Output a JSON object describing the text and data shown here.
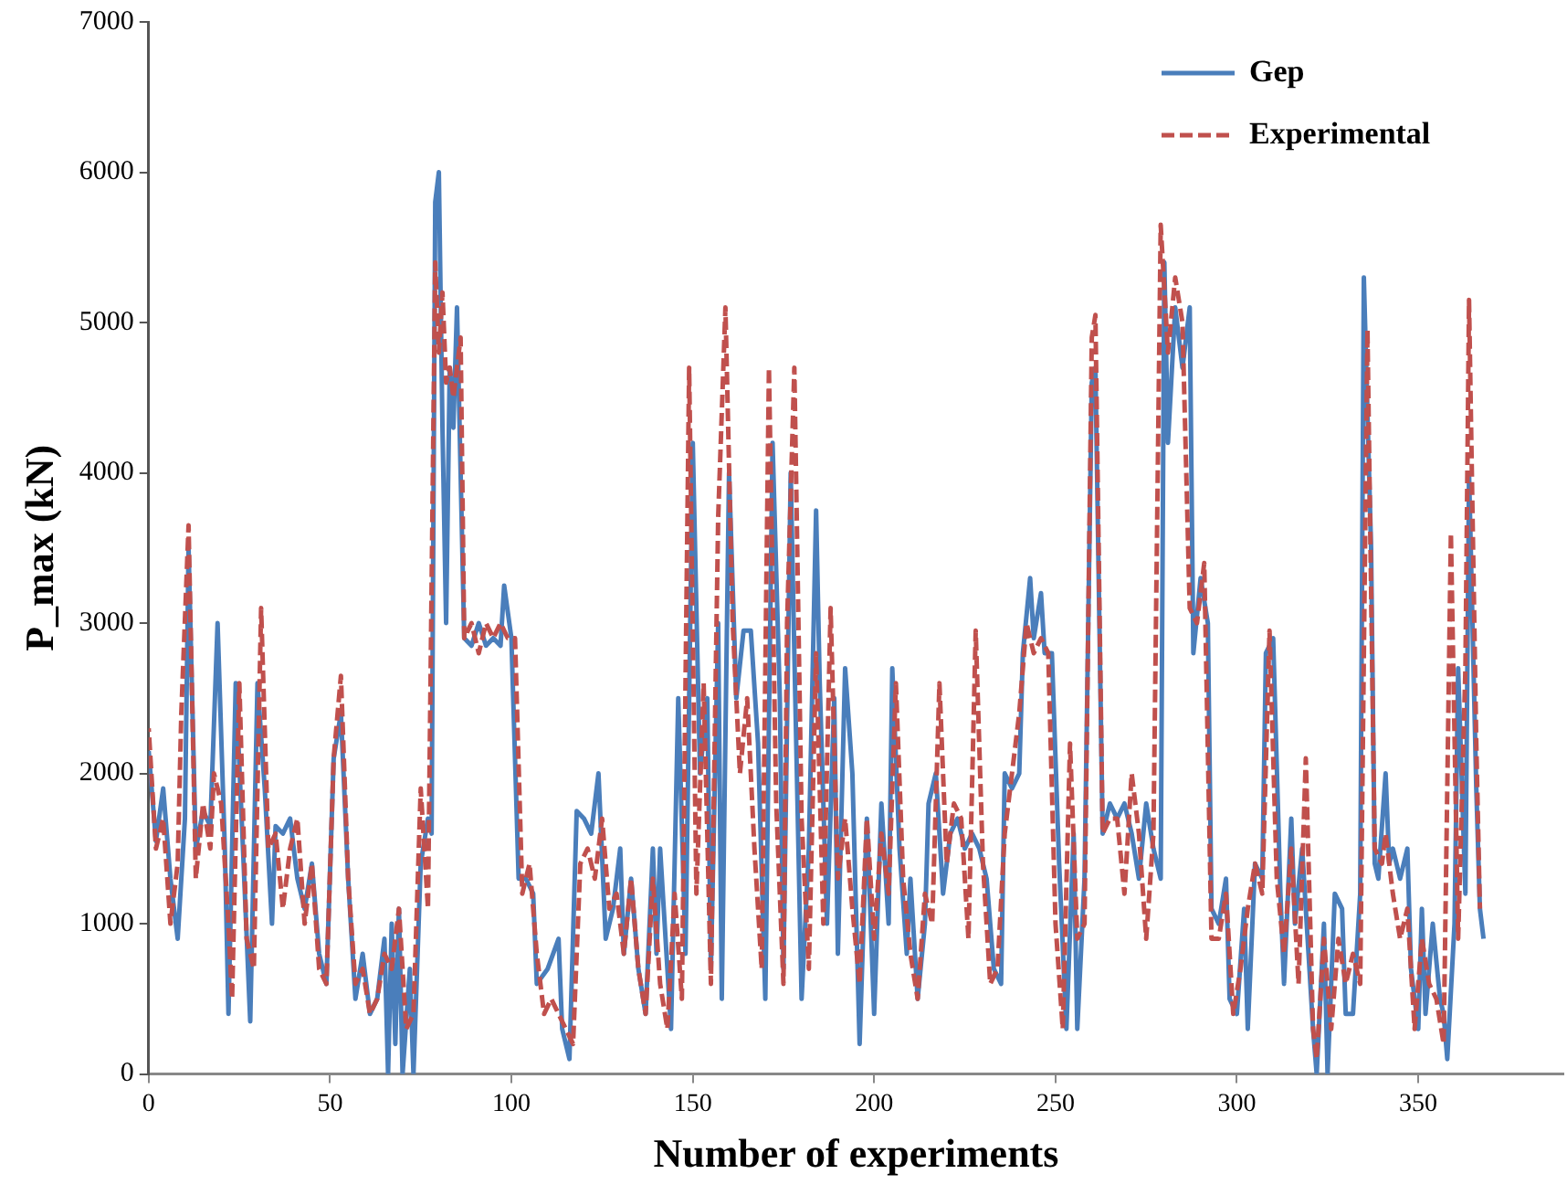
{
  "chart_data": {
    "type": "line",
    "xlabel": "Number of experiments",
    "ylabel": "P_max (kN)",
    "xlim": [
      0,
      390
    ],
    "xticks": [
      0,
      50,
      100,
      150,
      200,
      250,
      300,
      350
    ],
    "ylim": [
      0,
      7000
    ],
    "yticks": [
      0,
      1000,
      2000,
      3000,
      4000,
      5000,
      6000,
      7000
    ],
    "grid": false,
    "legend": "top right",
    "series": [
      {
        "name": "Gep",
        "color": "#4a7ebb",
        "line_style": "solid",
        "x": [
          0,
          2,
          4,
          6,
          8,
          10,
          11,
          13,
          15,
          17,
          19,
          21,
          22,
          24,
          26,
          28,
          30,
          32,
          34,
          35,
          37,
          39,
          41,
          43,
          45,
          47,
          49,
          51,
          53,
          55,
          57,
          59,
          61,
          63,
          65,
          66,
          67,
          68,
          69,
          70,
          72,
          73,
          75,
          77,
          78,
          79,
          80,
          81,
          82,
          83,
          84,
          85,
          87,
          89,
          91,
          93,
          95,
          97,
          98,
          100,
          102,
          104,
          106,
          107,
          110,
          113,
          114,
          116,
          118,
          120,
          122,
          124,
          126,
          128,
          130,
          131,
          133,
          135,
          137,
          139,
          140,
          141,
          143,
          144,
          146,
          148,
          150,
          152,
          154,
          155,
          157,
          158,
          160,
          162,
          164,
          166,
          168,
          170,
          172,
          174,
          175,
          177,
          178,
          180,
          182,
          184,
          185,
          187,
          189,
          190,
          192,
          194,
          196,
          198,
          200,
          202,
          204,
          205,
          207,
          209,
          210,
          212,
          214,
          215,
          217,
          219,
          221,
          223,
          225,
          227,
          229,
          231,
          233,
          235,
          236,
          238,
          240,
          241,
          243,
          244,
          246,
          247,
          249,
          251,
          253,
          255,
          256,
          258,
          260,
          261,
          263,
          265,
          267,
          269,
          271,
          273,
          275,
          277,
          279,
          280,
          281,
          283,
          285,
          287,
          288,
          290,
          292,
          293,
          295,
          297,
          298,
          300,
          302,
          303,
          305,
          307,
          308,
          310,
          312,
          313,
          315,
          316,
          318,
          320,
          321,
          322,
          324,
          325,
          327,
          329,
          330,
          332,
          334,
          335,
          337,
          338,
          339,
          341,
          342,
          343,
          345,
          347,
          348,
          350,
          351,
          352,
          354,
          356,
          357,
          358,
          360,
          361,
          363,
          364,
          366,
          367,
          368
        ],
        "values": [
          2150,
          1550,
          1900,
          1300,
          900,
          1700,
          3500,
          1500,
          1750,
          1650,
          3000,
          1500,
          400,
          2600,
          1500,
          350,
          2600,
          1900,
          1000,
          1650,
          1600,
          1700,
          1300,
          1100,
          1400,
          800,
          600,
          2100,
          2400,
          1300,
          500,
          800,
          400,
          500,
          900,
          0,
          1000,
          200,
          1100,
          0,
          700,
          0,
          1400,
          1700,
          1600,
          5800,
          6000,
          4300,
          3000,
          4700,
          4300,
          5100,
          2900,
          2850,
          3000,
          2850,
          2900,
          2850,
          3250,
          2900,
          1300,
          1300,
          1200,
          600,
          700,
          900,
          300,
          100,
          1750,
          1700,
          1600,
          2000,
          900,
          1100,
          1500,
          800,
          1300,
          700,
          400,
          1500,
          800,
          1500,
          700,
          300,
          2500,
          800,
          4200,
          2000,
          2500,
          700,
          3000,
          500,
          4000,
          2500,
          2950,
          2950,
          2200,
          500,
          4200,
          2500,
          700,
          4000,
          2800,
          500,
          1500,
          3750,
          2600,
          1000,
          2500,
          800,
          2700,
          2000,
          200,
          1700,
          400,
          1800,
          1000,
          2700,
          1500,
          800,
          1300,
          500,
          1000,
          1800,
          2000,
          1200,
          1600,
          1700,
          1500,
          1600,
          1500,
          1300,
          700,
          600,
          2000,
          1900,
          2000,
          2800,
          3300,
          2900,
          3200,
          2800,
          2800,
          1400,
          300,
          1600,
          300,
          1300,
          4600,
          4700,
          1600,
          1800,
          1700,
          1800,
          1600,
          1300,
          1800,
          1500,
          1300,
          5400,
          4200,
          5100,
          4700,
          5100,
          2800,
          3300,
          3000,
          1100,
          1000,
          1300,
          500,
          400,
          1100,
          300,
          1400,
          1300,
          2800,
          2900,
          1200,
          600,
          1700,
          1000,
          1500,
          700,
          300,
          0,
          1000,
          0,
          1200,
          1100,
          400,
          400,
          1200,
          5300,
          3500,
          1400,
          1300,
          2000,
          1400,
          1500,
          1300,
          1500,
          700,
          300,
          1100,
          400,
          1000,
          500,
          400,
          100,
          1000,
          2700,
          1200,
          4000,
          1900,
          1100,
          900
        ]
      },
      {
        "name": "Experimental",
        "color": "#c0504d",
        "line_style": "dashed",
        "x": [
          0,
          2,
          4,
          6,
          8,
          9,
          11,
          13,
          15,
          17,
          18,
          20,
          22,
          23,
          25,
          27,
          29,
          31,
          33,
          35,
          37,
          39,
          41,
          43,
          45,
          47,
          49,
          51,
          53,
          55,
          57,
          59,
          61,
          63,
          65,
          67,
          69,
          71,
          73,
          75,
          77,
          79,
          80,
          81,
          82,
          83,
          84,
          86,
          87,
          89,
          91,
          93,
          95,
          97,
          99,
          101,
          103,
          105,
          107,
          109,
          111,
          113,
          115,
          117,
          119,
          121,
          123,
          125,
          127,
          129,
          131,
          133,
          135,
          137,
          139,
          141,
          143,
          145,
          147,
          149,
          151,
          153,
          155,
          157,
          159,
          161,
          163,
          165,
          167,
          169,
          171,
          173,
          175,
          176,
          178,
          180,
          182,
          184,
          186,
          188,
          190,
          192,
          194,
          196,
          198,
          200,
          202,
          204,
          206,
          208,
          210,
          212,
          214,
          216,
          218,
          220,
          222,
          224,
          226,
          228,
          230,
          232,
          234,
          236,
          238,
          240,
          242,
          244,
          246,
          248,
          250,
          252,
          254,
          256,
          258,
          260,
          261,
          263,
          265,
          267,
          269,
          271,
          273,
          275,
          277,
          279,
          281,
          283,
          285,
          287,
          289,
          291,
          293,
          295,
          297,
          299,
          301,
          303,
          305,
          307,
          309,
          311,
          313,
          315,
          317,
          319,
          321,
          322,
          324,
          326,
          328,
          330,
          332,
          334,
          336,
          338,
          340,
          341,
          343,
          345,
          347,
          349,
          351,
          353,
          355,
          357,
          359,
          361,
          363,
          364,
          366,
          367
        ],
        "values": [
          2300,
          1500,
          1700,
          1000,
          1400,
          2400,
          3650,
          1300,
          1800,
          1500,
          2000,
          1800,
          1000,
          500,
          2600,
          900,
          700,
          3100,
          1500,
          1600,
          1100,
          1500,
          1700,
          1000,
          1400,
          700,
          600,
          2100,
          2650,
          1300,
          600,
          700,
          400,
          500,
          800,
          700,
          1100,
          300,
          400,
          1900,
          1100,
          5400,
          4800,
          5200,
          4600,
          4700,
          4500,
          4900,
          2900,
          3000,
          2800,
          3000,
          2900,
          3000,
          2900,
          2900,
          1200,
          1400,
          800,
          400,
          500,
          400,
          300,
          200,
          1400,
          1500,
          1300,
          1700,
          1100,
          1200,
          800,
          1300,
          700,
          400,
          1300,
          600,
          300,
          1200,
          500,
          4700,
          1200,
          2600,
          600,
          3700,
          5100,
          3000,
          2000,
          2500,
          1500,
          700,
          4700,
          1800,
          600,
          3000,
          4700,
          1700,
          700,
          2800,
          1000,
          3100,
          1300,
          1700,
          1100,
          600,
          1700,
          900,
          1600,
          1200,
          2600,
          1300,
          800,
          500,
          1200,
          1000,
          2600,
          1400,
          1800,
          1700,
          900,
          2950,
          1400,
          600,
          700,
          1600,
          2000,
          2400,
          3000,
          2800,
          2900,
          2800,
          1000,
          300,
          2200,
          900,
          1000,
          4900,
          5050,
          1600,
          1700,
          1700,
          1200,
          2000,
          1600,
          900,
          1600,
          5650,
          4800,
          5300,
          5000,
          3100,
          3000,
          3400,
          900,
          900,
          1200,
          400,
          700,
          1100,
          1400,
          1200,
          2950,
          1300,
          800,
          1500,
          600,
          2100,
          300,
          100,
          900,
          300,
          900,
          600,
          800,
          600,
          4950,
          1500,
          1400,
          1600,
          1200,
          900,
          1100,
          300,
          900,
          600,
          500,
          200,
          3600,
          900,
          2700,
          5150,
          2200,
          1100
        ]
      }
    ]
  }
}
